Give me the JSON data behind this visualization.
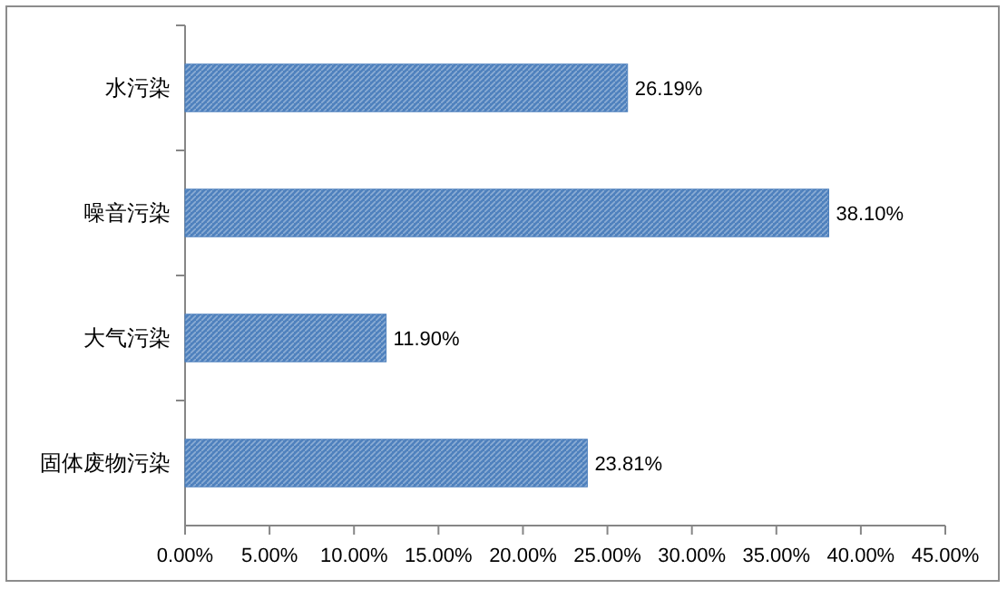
{
  "chart_data": {
    "type": "bar",
    "orientation": "horizontal",
    "categories": [
      "水污染",
      "噪音污染",
      "大气污染",
      "固体废物污染"
    ],
    "values": [
      26.19,
      38.1,
      11.9,
      23.81
    ],
    "value_labels": [
      "26.19%",
      "38.10%",
      "11.90%",
      "23.81%"
    ],
    "color": "#4f81bd",
    "xlim": [
      0,
      45
    ],
    "xticks": [
      {
        "value": 0,
        "label": "0.00%"
      },
      {
        "value": 5,
        "label": "5.00%"
      },
      {
        "value": 10,
        "label": "10.00%"
      },
      {
        "value": 15,
        "label": "15.00%"
      },
      {
        "value": 20,
        "label": "20.00%"
      },
      {
        "value": 25,
        "label": "25.00%"
      },
      {
        "value": 30,
        "label": "30.00%"
      },
      {
        "value": 35,
        "label": "35.00%"
      },
      {
        "value": 40,
        "label": "40.00%"
      },
      {
        "value": 45,
        "label": "45.00%"
      }
    ],
    "grid": false
  }
}
